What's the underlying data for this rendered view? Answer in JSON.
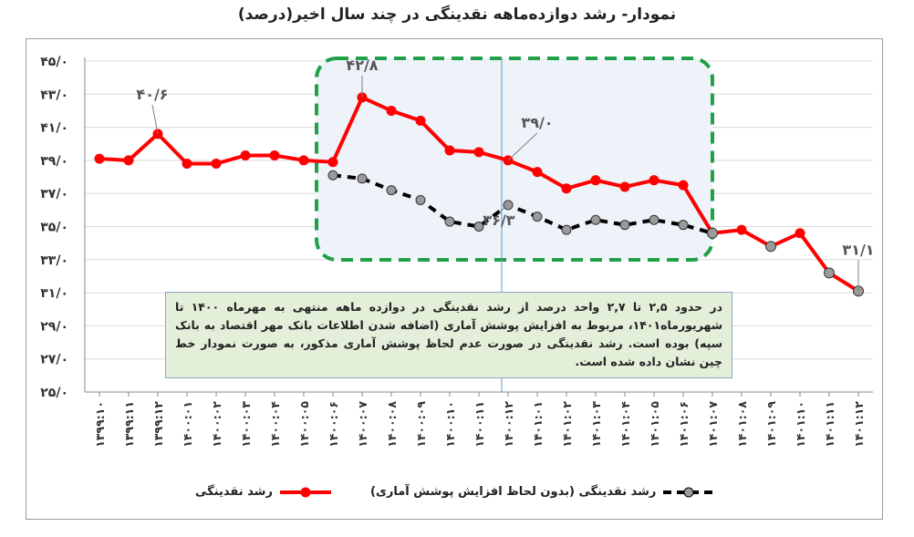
{
  "chart_data": {
    "type": "line",
    "title": "نمودار- رشد دوازده‌ماهه نقدینگی در چند سال اخیر(درصد)",
    "x_labels": [
      "۱۳۹۹:۱۰",
      "۱۳۹۹:۱۱",
      "۱۳۹۹:۱۲",
      "۱۴۰۰:۰۱",
      "۱۴۰۰:۰۲",
      "۱۴۰۰:۰۳",
      "۱۴۰۰:۰۴",
      "۱۴۰۰:۰۵",
      "۱۴۰۰:۰۶",
      "۱۴۰۰:۰۷",
      "۱۴۰۰:۰۸",
      "۱۴۰۰:۰۹",
      "۱۴۰۰:۱۰",
      "۱۴۰۰:۱۱",
      "۱۴۰۰:۱۲",
      "۱۴۰۱:۰۱",
      "۱۴۰۱:۰۲",
      "۱۴۰۱:۰۳",
      "۱۴۰۱:۰۴",
      "۱۴۰۱:۰۵",
      "۱۴۰۱:۰۶",
      "۱۴۰۱:۰۷",
      "۱۴۰۱:۰۸",
      "۱۴۰۱:۰۹",
      "۱۴۰۱:۱۰",
      "۱۴۰۱:۱۱",
      "۱۴۰۱:۱۲"
    ],
    "y_ticks": [
      "۲۵/۰",
      "۲۷/۰",
      "۲۹/۰",
      "۳۱/۰",
      "۳۳/۰",
      "۳۵/۰",
      "۳۷/۰",
      "۳۹/۰",
      "۴۱/۰",
      "۴۳/۰",
      "۴۵/۰"
    ],
    "ylim": [
      25,
      45
    ],
    "grid": true,
    "legend_position": "bottom",
    "series": [
      {
        "name": "رشد نقدینگی",
        "color": "#ff0000",
        "style": "solid",
        "values": [
          39.1,
          39.0,
          40.6,
          38.8,
          38.8,
          39.3,
          39.3,
          39.0,
          38.9,
          42.8,
          42.0,
          41.4,
          39.6,
          39.5,
          39.0,
          38.3,
          37.3,
          37.8,
          37.4,
          37.8,
          37.5,
          34.6,
          34.8,
          33.8,
          34.6,
          32.2,
          31.1
        ]
      },
      {
        "name": "رشد نقدینگی (بدون لحاظ افزایش پوشش آماری)",
        "color": "#000000",
        "style": "dashed",
        "start_index": 8,
        "values": [
          38.1,
          37.9,
          37.2,
          36.6,
          35.3,
          35.0,
          36.3,
          35.6,
          34.8,
          35.4,
          35.1,
          35.4,
          35.1,
          34.6
        ]
      }
    ],
    "annotations": [
      {
        "text": "۴۰/۶",
        "index": 2,
        "series": 0
      },
      {
        "text": "۴۲/۸",
        "index": 9,
        "series": 0
      },
      {
        "text": "۳۹/۰",
        "index": 14,
        "series": 0
      },
      {
        "text": "۳۶/۳",
        "index": 14,
        "series": 1
      },
      {
        "text": "۳۱/۱",
        "index": 26,
        "series": 0
      }
    ]
  },
  "note": "در حدود ۲,۵ تا ۲,۷ واحد درصد از رشد نقدینگی در دوازده ماهه منتهی به مهرماه ۱۴۰۰ تا شهریورماه۱۴۰۱، مربوط به افزایش پوشش آماری (اضافه شدن اطلاعات بانک مهر اقتصاد به بانک سپه) بوده است. رشد نقدینگی در صورت عدم لحاظ پوشش آماری مذکور، به صورت نمودار خط چین نشان داده شده است.",
  "legend": {
    "series1": "رشد نقدینگی",
    "series2": "رشد نقدینگی (بدون لحاظ افزایش پوشش آماری)"
  },
  "colors": {
    "highlight_fill": "#edf3f9",
    "highlight_border": "#21a04a",
    "marker_gray": "#9b9b9b"
  }
}
